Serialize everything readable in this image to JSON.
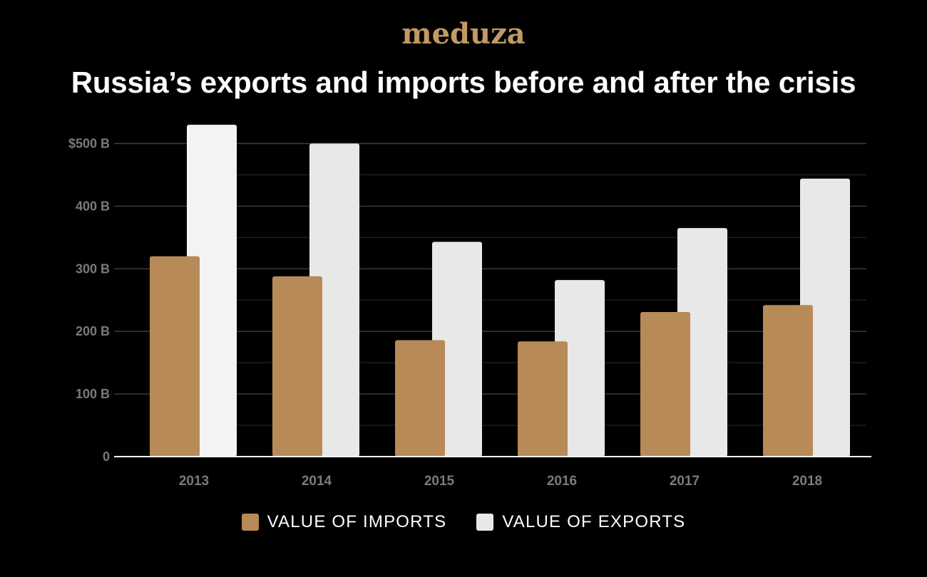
{
  "brand": {
    "logo_text": "meduza",
    "logo_color": "#c29a64"
  },
  "chart_data": {
    "type": "bar",
    "title": "Russia’s exports and imports before and after the crisis",
    "categories": [
      "2013",
      "2014",
      "2015",
      "2016",
      "2017",
      "2018"
    ],
    "series": [
      {
        "name": "VALUE OF IMPORTS",
        "values": [
          320,
          288,
          186,
          184,
          231,
          242
        ],
        "color": "#b78a57"
      },
      {
        "name": "VALUE OF EXPORTS",
        "values": [
          530,
          500,
          343,
          282,
          365,
          444
        ],
        "color": "#e8e8e8"
      }
    ],
    "yticks": [
      {
        "value": 0,
        "label": "0"
      },
      {
        "value": 100,
        "label": "100 B"
      },
      {
        "value": 200,
        "label": "200 B"
      },
      {
        "value": 300,
        "label": "300 B"
      },
      {
        "value": 400,
        "label": "400 B"
      },
      {
        "value": 500,
        "label": "$500 B"
      }
    ],
    "ylim": [
      0,
      530
    ],
    "minor_gridlines": [
      50,
      150,
      250,
      350,
      450
    ],
    "xlabel": "",
    "ylabel": "",
    "legend_position": "bottom-center"
  }
}
